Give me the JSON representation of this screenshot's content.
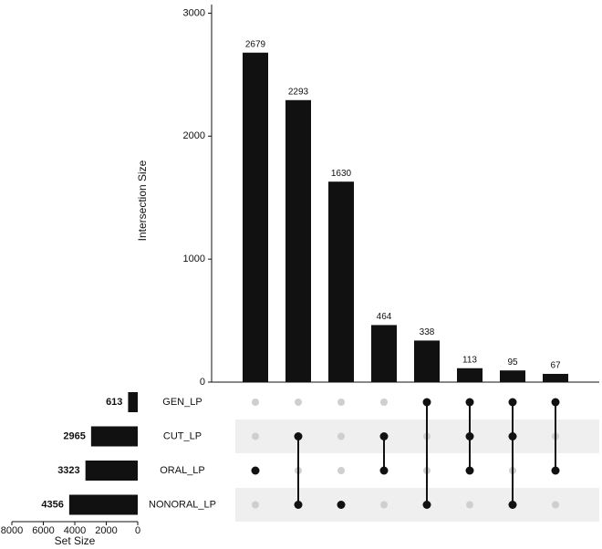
{
  "chart_data": {
    "type": "upset",
    "y_label": "Intersection Size",
    "values": [
      2679,
      2293,
      1630,
      464,
      338,
      113,
      95,
      67
    ],
    "ylim": [
      0,
      3070
    ],
    "yticks": [
      0,
      1000,
      2000,
      3000
    ],
    "bar_color": "#111111",
    "sets": [
      "GEN_LP",
      "CUT_LP",
      "ORAL_LP",
      "NONORAL_LP"
    ],
    "set_sizes": [
      613,
      2965,
      3323,
      4356
    ],
    "x_label": "Set Size",
    "xlim": [
      8000,
      0
    ],
    "xticks": [
      8000,
      6000,
      4000,
      2000,
      0
    ],
    "intersections": [
      [
        2
      ],
      [
        1,
        3
      ],
      [
        3
      ],
      [
        1,
        2
      ],
      [
        0,
        3
      ],
      [
        0,
        1,
        2
      ],
      [
        0,
        1,
        3
      ],
      [
        0,
        2
      ]
    ]
  }
}
